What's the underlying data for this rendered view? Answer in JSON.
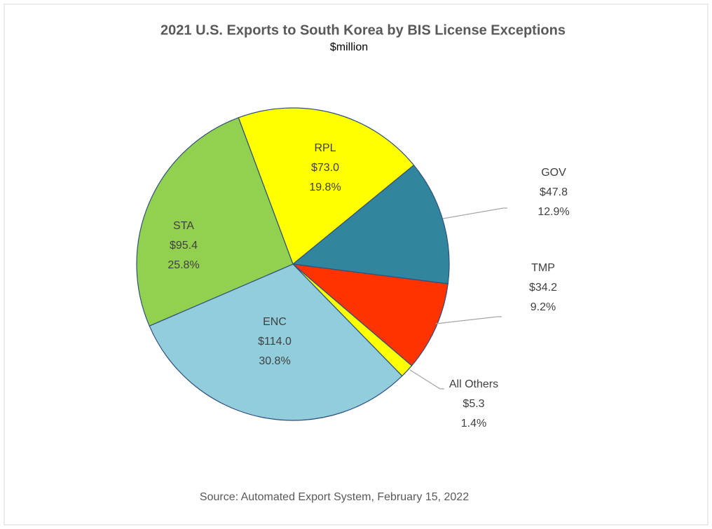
{
  "chart_data": {
    "type": "pie",
    "title": "2021 U.S. Exports to South Korea by BIS License Exceptions",
    "subtitle": "$million",
    "source": "Source: Automated Export System, February 15, 2022",
    "categories": [
      "RPL",
      "GOV",
      "TMP",
      "All Others",
      "ENC",
      "STA"
    ],
    "values": [
      73.0,
      47.8,
      34.2,
      5.3,
      114.0,
      95.4
    ],
    "value_labels": [
      "$73.0",
      "$47.8",
      "$34.2",
      "$5.3",
      "$114.0",
      "$95.4"
    ],
    "percent_labels": [
      "19.8%",
      "12.9%",
      "9.2%",
      "1.4%",
      "30.8%",
      "25.8%"
    ],
    "colors": [
      "#ffff00",
      "#31859c",
      "#ff3300",
      "#ffff00",
      "#92cddc",
      "#92d050"
    ]
  }
}
